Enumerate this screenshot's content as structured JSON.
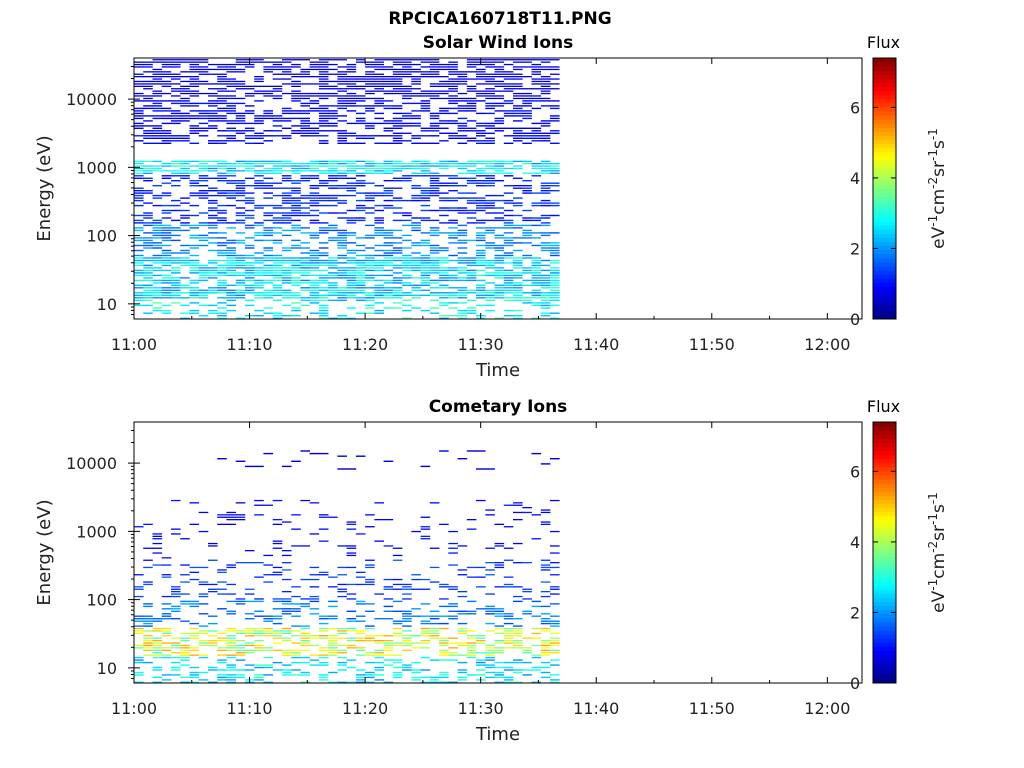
{
  "figure_title": "RPCICA160718T11.PNG",
  "chart_data": [
    {
      "type": "heatmap",
      "title": "Solar Wind Ions",
      "xlabel": "Time",
      "ylabel": "Energy (eV)",
      "x_ticks": [
        "11:00",
        "11:10",
        "11:20",
        "11:30",
        "11:40",
        "11:50",
        "12:00"
      ],
      "x_range": [
        "11:00",
        "12:03"
      ],
      "data_time_range": [
        "11:00",
        "11:36"
      ],
      "y_scale": "log",
      "y_ticks": [
        {
          "value": 10,
          "label": "10"
        },
        {
          "value": 100,
          "label": "100"
        },
        {
          "value": 1000,
          "label": "1000"
        },
        {
          "value": 10000,
          "label": "10000"
        }
      ],
      "y_range": [
        6,
        40000
      ],
      "colorbar": {
        "title": "Flux",
        "label": "eV-1cm-2sr-1s-1",
        "range": [
          0,
          7.4
        ],
        "ticks": [
          "0",
          "2",
          "4",
          "6"
        ],
        "colormap": "jet"
      },
      "bands": [
        {
          "energy": [
            10000,
            40000
          ],
          "value": 0.7,
          "density": 0.65
        },
        {
          "energy": [
            2200,
            10000
          ],
          "value": 0.9,
          "density": 0.55
        },
        {
          "energy": [
            800,
            1300
          ],
          "value": 2.6,
          "density": 0.8
        },
        {
          "energy": [
            150,
            800
          ],
          "value": 1.2,
          "density": 0.45
        },
        {
          "energy": [
            50,
            150
          ],
          "value": 1.9,
          "density": 0.5
        },
        {
          "energy": [
            12,
            50
          ],
          "value": 2.5,
          "density": 0.75
        },
        {
          "energy": [
            6,
            12
          ],
          "value": 2.8,
          "density": 0.35
        }
      ]
    },
    {
      "type": "heatmap",
      "title": "Cometary Ions",
      "xlabel": "Time",
      "ylabel": "Energy (eV)",
      "x_ticks": [
        "11:00",
        "11:10",
        "11:20",
        "11:30",
        "11:40",
        "11:50",
        "12:00"
      ],
      "x_range": [
        "11:00",
        "12:03"
      ],
      "data_time_range": [
        "11:00",
        "11:36"
      ],
      "y_scale": "log",
      "y_ticks": [
        {
          "value": 10,
          "label": "10"
        },
        {
          "value": 100,
          "label": "100"
        },
        {
          "value": 1000,
          "label": "1000"
        },
        {
          "value": 10000,
          "label": "10000"
        }
      ],
      "y_range": [
        6,
        40000
      ],
      "colorbar": {
        "title": "Flux",
        "label": "eV-1cm-2sr-1s-1",
        "range": [
          0,
          7.4
        ],
        "ticks": [
          "0",
          "2",
          "4",
          "6"
        ],
        "colormap": "jet"
      },
      "bands": [
        {
          "energy": [
            8000,
            16000
          ],
          "value": 0.6,
          "density": 0.08
        },
        {
          "energy": [
            400,
            3000
          ],
          "value": 0.9,
          "density": 0.1
        },
        {
          "energy": [
            100,
            400
          ],
          "value": 1.3,
          "density": 0.2
        },
        {
          "energy": [
            40,
            100
          ],
          "value": 1.8,
          "density": 0.3
        },
        {
          "energy": [
            15,
            40
          ],
          "value": 4.3,
          "density": 0.55
        },
        {
          "energy": [
            6,
            15
          ],
          "value": 2.6,
          "density": 0.4
        }
      ]
    }
  ]
}
